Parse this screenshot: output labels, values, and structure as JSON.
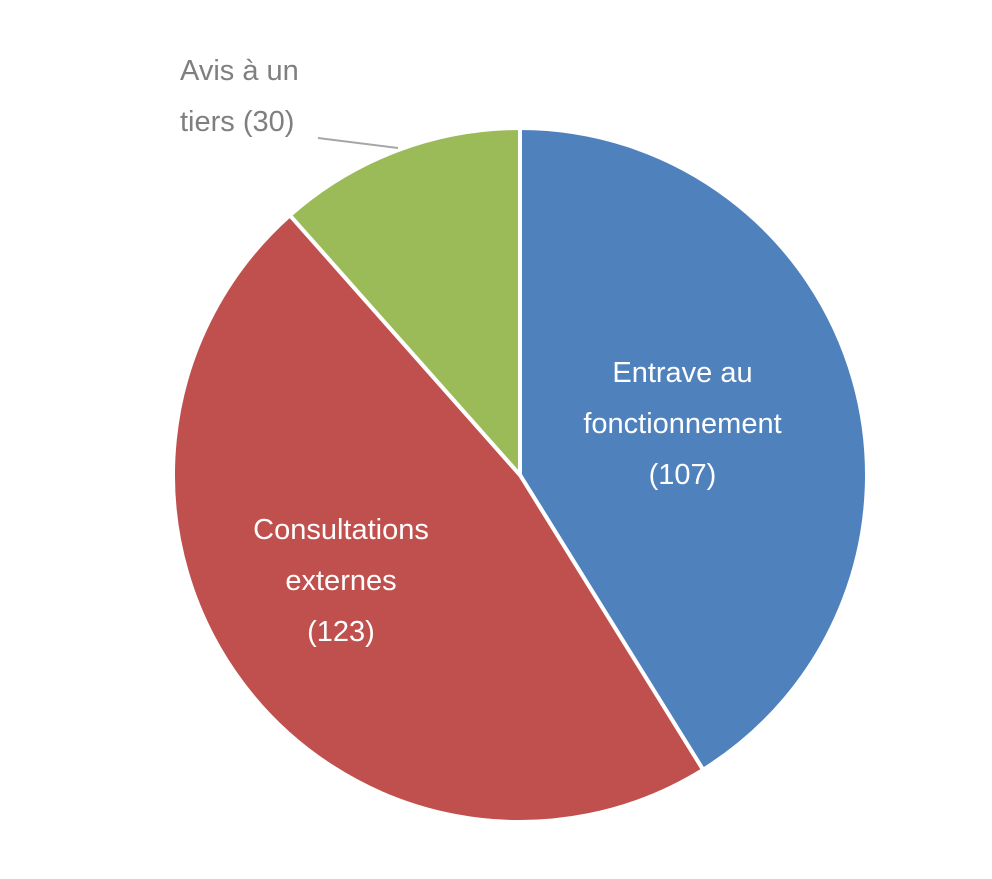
{
  "chart_data": {
    "type": "pie",
    "categories": [
      "Entrave au fonctionnement",
      "Consultations externes",
      "Avis à un tiers"
    ],
    "values": [
      107,
      123,
      30
    ],
    "value_labels": [
      "(107)",
      "(123)",
      "(30)"
    ],
    "colors": [
      "#4f81bd",
      "#c0504d",
      "#9bbb59"
    ]
  }
}
